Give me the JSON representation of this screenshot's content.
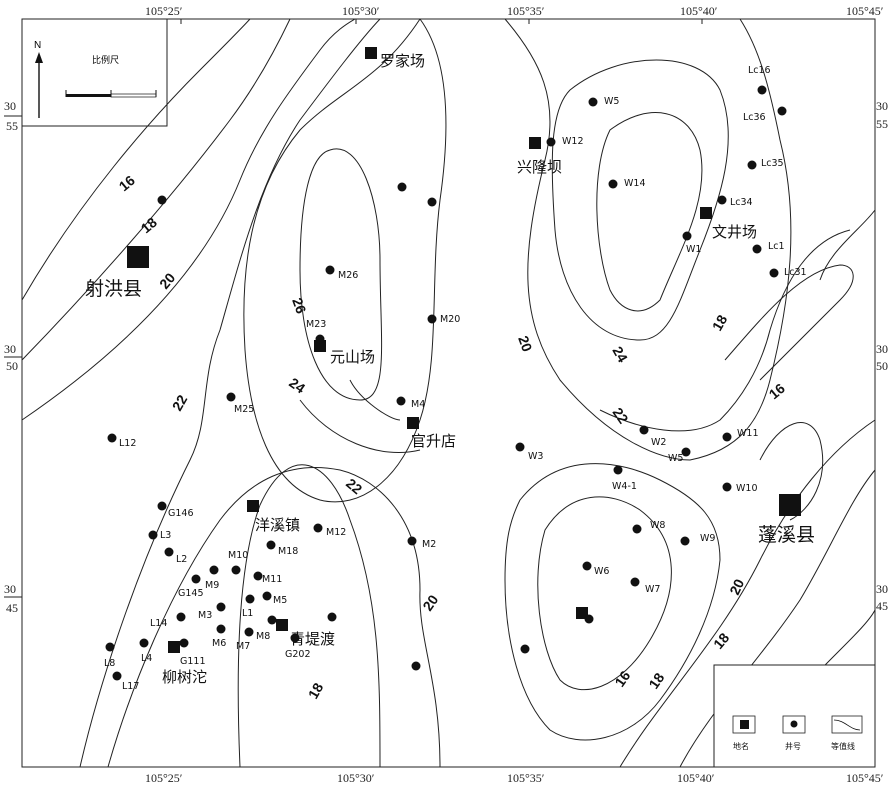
{
  "axes": {
    "lon_top": [
      "105°25′",
      "105°30′",
      "105°35′",
      "105°40′",
      "105°45′"
    ],
    "lon_bottom": [
      "105°25′",
      "105°30′",
      "105°35′",
      "105°40′",
      "105°45′"
    ],
    "lat_left": [
      [
        "30",
        "55"
      ],
      [
        "30",
        "50"
      ],
      [
        "30",
        "45"
      ]
    ],
    "lat_right": [
      [
        "30",
        "55"
      ],
      [
        "30",
        "50"
      ],
      [
        "30",
        "45"
      ]
    ]
  },
  "inset": {
    "north": "N",
    "scale_label": "比例尺"
  },
  "places": {
    "luojiachang": "罗家场",
    "xinglongba": "兴隆坝",
    "wenjingchang": "文井场",
    "shehongxian": "射洪县",
    "yuanshanchang": "元山场",
    "guanshengdian": "官升店",
    "yangxizhen": "洋溪镇",
    "qingdidu": "青堤渡",
    "liushutuo": "柳树沱",
    "pengxixian": "蓬溪县"
  },
  "contour_labels": [
    "16",
    "18",
    "20",
    "22",
    "24",
    "26",
    "20",
    "24",
    "22",
    "18",
    "16",
    "22",
    "20",
    "18",
    "16",
    "18",
    "20",
    "18"
  ],
  "wells": [
    "W5",
    "W12",
    "W14",
    "W1",
    "Lc16",
    "Lc36",
    "Lc35",
    "Lc34",
    "Lc1",
    "Lc31",
    "M26",
    "M20",
    "M23",
    "M25",
    "M4",
    "L12",
    "W3",
    "W2",
    "W5",
    "W11",
    "W4-1",
    "W10",
    "W8",
    "W9",
    "W6",
    "W7",
    "G146",
    "L3",
    "L2",
    "M10",
    "M18",
    "M12",
    "M2",
    "G145",
    "M9",
    "M11",
    "M5",
    "M3",
    "L1",
    "L14",
    "M6",
    "M7",
    "M8",
    "G202",
    "L8",
    "L4",
    "G111",
    "L17"
  ],
  "legend": {
    "place": "地名",
    "well": "井号",
    "contour": "等值线"
  },
  "colors": {
    "ink": "#111111",
    "background": "#ffffff"
  }
}
